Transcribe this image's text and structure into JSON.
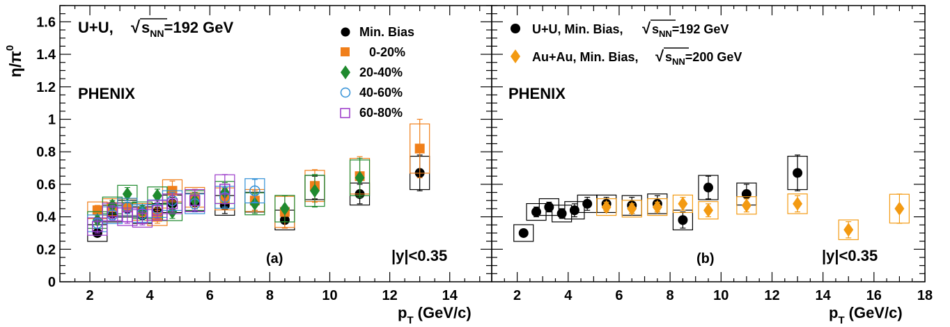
{
  "colors": {
    "minbias": "#000000",
    "c0_20": "#f07f1a",
    "c20_40": "#1f8a2e",
    "c40_60": "#2f8fd6",
    "c60_80": "#9a37c9",
    "auau": "#f39a12"
  },
  "labels": {
    "ylabel_main": "η/π",
    "ylabel_sup": "0",
    "xlabel_main": "p",
    "xlabel_sub": "T",
    "xlabel_unit": "(GeV/c)"
  },
  "panel_a": {
    "system": "U+U,",
    "energy_sub": "s",
    "energy_subsub": "NN",
    "energy_value": "=192 GeV",
    "experiment": "PHENIX",
    "panel_label": "(a)",
    "rapidity": "|y|<0.35",
    "legend": [
      "Min. Bias",
      "0-20%",
      "20-40%",
      "40-60%",
      "60-80%"
    ]
  },
  "panel_b": {
    "experiment": "PHENIX",
    "panel_label": "(b)",
    "rapidity": "|y|<0.35",
    "legend_1_prefix": "U+U, Min. Bias,",
    "legend_1_value": "=192 GeV",
    "legend_2_prefix": "Au+Au, Min. Bias,",
    "legend_2_value": "=200 GeV",
    "sqrt_s": "s",
    "sqrt_nn": "NN"
  },
  "chart_data": [
    {
      "type": "scatter",
      "panel": "a",
      "xlim": [
        1,
        15.4
      ],
      "ylim": [
        0,
        1.7
      ],
      "xticks": [
        "2",
        "4",
        "6",
        "8",
        "10",
        "12",
        "14"
      ],
      "yticks": [
        "0",
        "0.2",
        "0.4",
        "0.6",
        "0.8",
        "1",
        "1.2",
        "1.4",
        "1.6"
      ],
      "series": [
        {
          "name": "Min. Bias",
          "marker": "circle",
          "color_key": "minbias",
          "x": [
            2.25,
            2.75,
            3.25,
            3.75,
            4.25,
            4.75,
            5.5,
            6.5,
            7.5,
            8.5,
            9.5,
            11,
            13
          ],
          "y": [
            0.3,
            0.42,
            0.45,
            0.41,
            0.43,
            0.48,
            0.49,
            0.47,
            0.49,
            0.38,
            0.58,
            0.54,
            0.67
          ],
          "err": [
            0.02,
            0.03,
            0.03,
            0.03,
            0.03,
            0.04,
            0.04,
            0.05,
            0.05,
            0.05,
            0.07,
            0.06,
            0.11
          ]
        },
        {
          "name": "0-20%",
          "marker": "square",
          "color_key": "c0_20",
          "x": [
            2.25,
            2.75,
            3.25,
            3.75,
            4.25,
            4.75,
            5.5,
            6.5,
            7.5,
            8.5,
            9.5,
            11,
            13
          ],
          "y": [
            0.44,
            0.46,
            0.46,
            0.43,
            0.4,
            0.56,
            0.52,
            0.51,
            0.5,
            0.43,
            0.59,
            0.65,
            0.82
          ],
          "err": [
            0.03,
            0.03,
            0.03,
            0.03,
            0.04,
            0.06,
            0.05,
            0.06,
            0.06,
            0.1,
            0.1,
            0.12,
            0.18
          ]
        },
        {
          "name": "20-40%",
          "marker": "diamond",
          "color_key": "c20_40",
          "x": [
            2.25,
            2.75,
            3.25,
            3.75,
            4.25,
            4.75,
            5.5,
            6.5,
            7.5,
            8.5,
            9.5,
            11,
            13
          ],
          "y": [
            0.38,
            0.47,
            0.54,
            0.44,
            0.53,
            0.43,
            0.5,
            0.55,
            0.48,
            0.45,
            0.56,
            0.64,
            null
          ],
          "err": [
            0.03,
            0.03,
            0.04,
            0.03,
            0.04,
            0.04,
            0.05,
            0.06,
            0.06,
            0.08,
            0.1,
            0.12,
            null
          ]
        },
        {
          "name": "40-60%",
          "marker": "open-circle",
          "color_key": "c40_60",
          "x": [
            2.25,
            2.75,
            3.25,
            3.75,
            4.25,
            4.75,
            5.5,
            6.5,
            7.5
          ],
          "y": [
            0.36,
            0.41,
            0.46,
            0.42,
            0.45,
            0.5,
            0.48,
            0.52,
            0.56
          ],
          "err": [
            0.03,
            0.03,
            0.04,
            0.04,
            0.04,
            0.05,
            0.05,
            0.06,
            0.07
          ]
        },
        {
          "name": "60-80%",
          "marker": "open-square",
          "color_key": "c60_80",
          "x": [
            2.25,
            2.75,
            3.25,
            3.75,
            4.25,
            4.75,
            5.5,
            6.5
          ],
          "y": [
            0.34,
            0.43,
            0.4,
            0.39,
            0.44,
            0.48,
            0.5,
            0.57
          ],
          "err": [
            0.04,
            0.04,
            0.04,
            0.04,
            0.05,
            0.05,
            0.06,
            0.09
          ]
        }
      ]
    },
    {
      "type": "scatter",
      "panel": "b",
      "xlim": [
        1,
        18
      ],
      "ylim": [
        0,
        1.7
      ],
      "xticks": [
        "2",
        "4",
        "6",
        "8",
        "10",
        "12",
        "14",
        "16",
        "18"
      ],
      "series": [
        {
          "name": "U+U, Min. Bias",
          "marker": "circle",
          "color_key": "minbias",
          "x": [
            2.25,
            2.75,
            3.25,
            3.75,
            4.25,
            4.75,
            5.5,
            6.5,
            7.5,
            8.5,
            9.5,
            11,
            13
          ],
          "y": [
            0.3,
            0.43,
            0.46,
            0.42,
            0.44,
            0.48,
            0.48,
            0.47,
            0.48,
            0.38,
            0.58,
            0.54,
            0.67
          ],
          "err": [
            0.02,
            0.03,
            0.03,
            0.03,
            0.04,
            0.04,
            0.04,
            0.05,
            0.05,
            0.05,
            0.07,
            0.06,
            0.11
          ]
        },
        {
          "name": "Au+Au, Min. Bias",
          "marker": "diamond",
          "color_key": "auau",
          "x": [
            5.5,
            6.5,
            7.5,
            8.5,
            9.5,
            11,
            13,
            15,
            17
          ],
          "y": [
            0.46,
            0.45,
            0.46,
            0.48,
            0.44,
            0.47,
            0.48,
            0.32,
            0.45
          ],
          "err": [
            0.03,
            0.03,
            0.03,
            0.04,
            0.04,
            0.04,
            0.05,
            0.05,
            0.09
          ]
        }
      ]
    }
  ]
}
